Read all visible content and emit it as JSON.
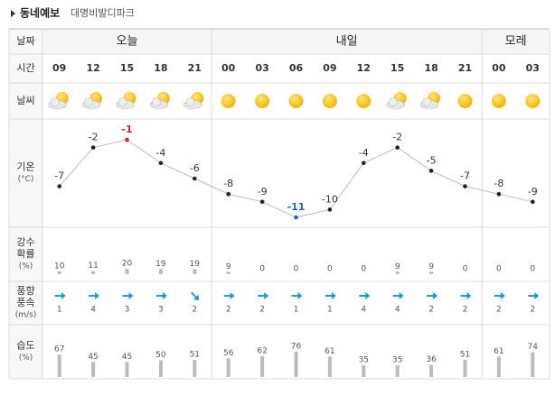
{
  "header": {
    "title": "동네예보",
    "location": "대명비발디파크"
  },
  "rows": {
    "date": "날짜",
    "time": "시간",
    "weather": "날씨",
    "temperature": [
      "기온",
      "(°C)"
    ],
    "precipitation": [
      "강수",
      "확률",
      "(%)"
    ],
    "wind": [
      "풍향",
      "풍속",
      "(m/s)"
    ],
    "humidity": [
      "습도",
      "(%)"
    ]
  },
  "days": [
    {
      "label": "오늘",
      "span": 5
    },
    {
      "label": "내일",
      "span": 8
    },
    {
      "label": "모레",
      "span": 2
    }
  ],
  "times": [
    "09",
    "12",
    "15",
    "18",
    "21",
    "00",
    "03",
    "06",
    "09",
    "12",
    "15",
    "18",
    "21",
    "00",
    "03"
  ],
  "weather": [
    "partly-cloudy",
    "partly-cloudy",
    "partly-cloudy",
    "partly-cloudy",
    "partly-cloudy",
    "sunny",
    "sunny",
    "sunny",
    "sunny",
    "sunny",
    "partly-cloudy",
    "partly-cloudy",
    "sunny",
    "sunny",
    "sunny"
  ],
  "temperature": [
    -7,
    -2,
    -1,
    -4,
    -6,
    -8,
    -9,
    -11,
    -10,
    -4,
    -2,
    -5,
    -7,
    -8,
    -9
  ],
  "precipitation": [
    10,
    11,
    20,
    19,
    19,
    9,
    0,
    0,
    0,
    0,
    9,
    9,
    0,
    0,
    0
  ],
  "wind_direction": [
    "E",
    "E",
    "E",
    "E",
    "SE",
    "E",
    "E",
    "E",
    "E",
    "E",
    "E",
    "E",
    "E",
    "E",
    "E"
  ],
  "wind_speed": [
    1,
    4,
    3,
    3,
    2,
    2,
    2,
    1,
    1,
    4,
    4,
    2,
    2,
    2,
    2
  ],
  "humidity": [
    67,
    45,
    45,
    50,
    51,
    56,
    62,
    76,
    61,
    35,
    35,
    36,
    51,
    61,
    74
  ]
}
